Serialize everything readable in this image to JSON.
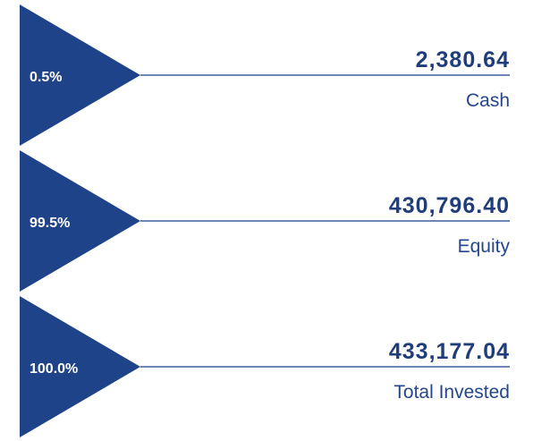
{
  "rows": [
    {
      "percent": "0.5%",
      "amount": "2,380.64",
      "label": "Cash"
    },
    {
      "percent": "99.5%",
      "amount": "430,796.40",
      "label": "Equity"
    },
    {
      "percent": "100.0%",
      "amount": "433,177.04",
      "label": "Total Invested"
    }
  ]
}
